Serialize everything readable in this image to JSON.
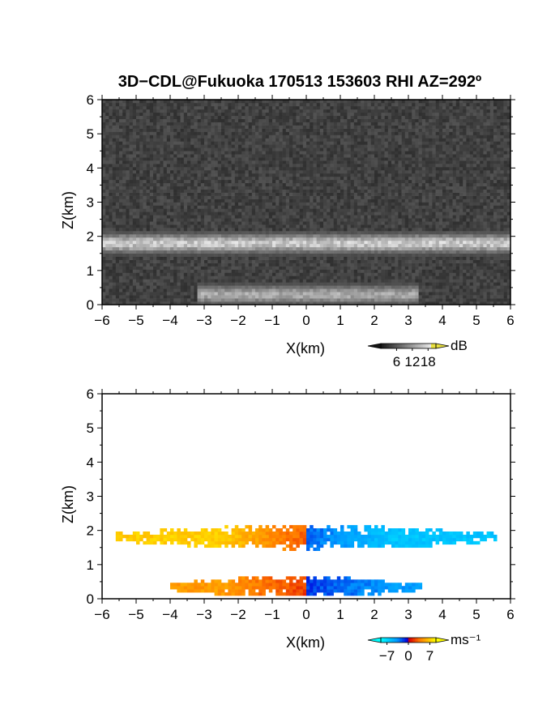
{
  "title": "3D−CDL@Fukuoka 170513 153603 RHI AZ=292º",
  "chart_data": [
    {
      "type": "heatmap",
      "name": "backscatter-intensity",
      "xlabel": "X(km)",
      "ylabel": "Z(km)",
      "xlim": [
        -6,
        6
      ],
      "ylim": [
        0,
        6
      ],
      "xticks": [
        "−6",
        "−5",
        "−4",
        "−3",
        "−2",
        "−1",
        "0",
        "1",
        "2",
        "3",
        "4",
        "5",
        "6"
      ],
      "yticks": [
        "0",
        "1",
        "2",
        "3",
        "4",
        "5",
        "6"
      ],
      "colorbar": {
        "unit": "dB",
        "ticks": [
          "6",
          "12",
          "18"
        ],
        "range": [
          0,
          21
        ],
        "colormap": "grayscale-to-yellow"
      },
      "features": [
        {
          "kind": "layer",
          "z_center": 1.8,
          "z_halfwidth": 0.25,
          "x_range": [
            -6,
            6
          ],
          "level": 14
        },
        {
          "kind": "layer",
          "z_center": 0.3,
          "z_halfwidth": 0.25,
          "x_range": [
            -3.2,
            3.3
          ],
          "level": 11
        },
        {
          "kind": "background",
          "level": 4
        }
      ]
    },
    {
      "type": "heatmap",
      "name": "doppler-velocity",
      "xlabel": "X(km)",
      "ylabel": "Z(km)",
      "xlim": [
        -6,
        6
      ],
      "ylim": [
        0,
        6
      ],
      "xticks": [
        "−6",
        "−5",
        "−4",
        "−3",
        "−2",
        "−1",
        "0",
        "1",
        "2",
        "3",
        "4",
        "5",
        "6"
      ],
      "yticks": [
        "0",
        "1",
        "2",
        "3",
        "4",
        "5",
        "6"
      ],
      "colorbar": {
        "unit": "ms⁻¹",
        "ticks": [
          "−7",
          "0",
          "7"
        ],
        "range": [
          -9,
          9
        ],
        "colormap": "cyan-blue-red-yellow"
      },
      "features": [
        {
          "kind": "layer",
          "z_center": 1.8,
          "z_halfwidth": 0.35,
          "x_range": [
            -5.6,
            5.6
          ],
          "velocity_left": 7,
          "velocity_right": -6
        },
        {
          "kind": "layer",
          "z_center": 0.35,
          "z_halfwidth": 0.3,
          "x_range": [
            -4.0,
            3.4
          ],
          "velocity_left": 5,
          "velocity_right": -4
        }
      ]
    }
  ]
}
